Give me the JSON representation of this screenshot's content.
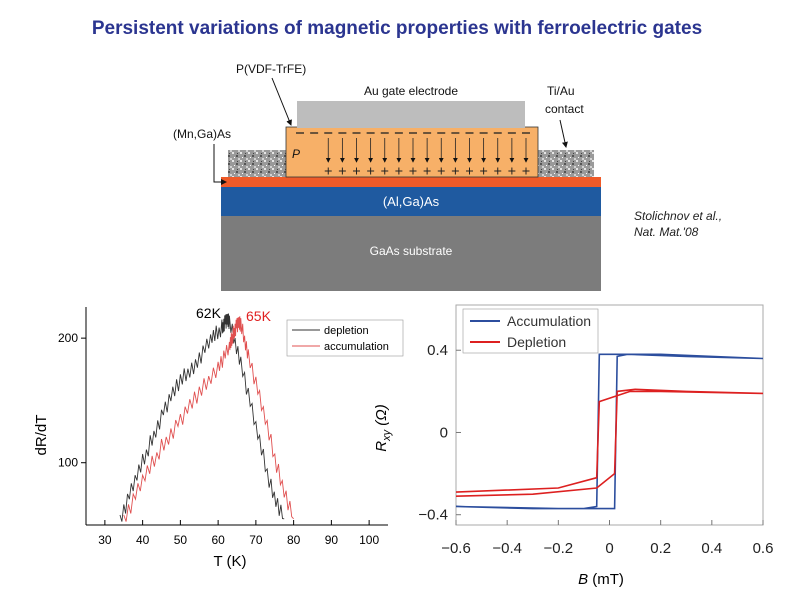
{
  "slide": {
    "title": "Persistent variations of magnetic properties with ferroelectric gates",
    "citation_line1": "Stolichnov et al.,",
    "citation_line2": "Nat. Mat.'08"
  },
  "schematic": {
    "layers": {
      "gate": "Au gate electrode",
      "algaas": "(Al,Ga)As",
      "substrate": "GaAs substrate",
      "polarization": "P"
    },
    "callouts": {
      "pvdf": "P(VDF-TrFE)",
      "mngaas": "(Mn,Ga)As",
      "contact_line1": "Ti/Au",
      "contact_line2": "contact"
    },
    "colors": {
      "gate": "#bdbdbd",
      "ferroelectric": "#f7b068",
      "mngaas": "#ef5a28",
      "algaas": "#1f5aa0",
      "substrate": "#7c7c7c"
    }
  },
  "chart_data": [
    {
      "type": "line",
      "xlabel": "T (K)",
      "ylabel": "dR/dT",
      "xlim": [
        25,
        105
      ],
      "ylim": [
        50,
        225
      ],
      "xticks": [
        30,
        40,
        50,
        60,
        70,
        80,
        90,
        100
      ],
      "yticks": [
        100,
        200
      ],
      "annotations": [
        {
          "text": "62K",
          "color": "#000000"
        },
        {
          "text": "65K",
          "color": "#e02020"
        }
      ],
      "legend_position": "top-right",
      "series": [
        {
          "name": "depletion",
          "color": "#333333",
          "x": [
            34,
            38,
            42,
            46,
            50,
            54,
            58,
            61,
            62,
            63,
            66,
            70,
            74,
            77.5
          ],
          "y": [
            55,
            85,
            115,
            145,
            165,
            180,
            198,
            208,
            215,
            212,
            182,
            128,
            80,
            55
          ]
        },
        {
          "name": "accumulation",
          "color": "#e05050",
          "x": [
            35,
            40,
            45,
            50,
            55,
            60,
            63,
            64,
            65,
            66,
            68,
            72,
            76,
            80
          ],
          "y": [
            55,
            85,
            112,
            135,
            155,
            178,
            192,
            203,
            212,
            210,
            188,
            140,
            92,
            55
          ]
        }
      ]
    },
    {
      "type": "line",
      "xlabel": "B (mT)",
      "ylabel": "R_xy (Ω)",
      "xlim": [
        -0.6,
        0.6
      ],
      "ylim": [
        -0.45,
        0.62
      ],
      "xticks": [
        -0.6,
        -0.4,
        -0.2,
        0,
        0.2,
        0.4,
        0.6
      ],
      "xtick_labels": [
        "−0.6",
        "−0.4",
        "−0.2",
        "0",
        "0.2",
        "0.4",
        "0.6"
      ],
      "yticks": [
        -0.4,
        0,
        0.4
      ],
      "ytick_labels": [
        "−0.4",
        "0",
        "0.4"
      ],
      "legend_position": "top-left",
      "series": [
        {
          "name": "Accumulation",
          "color": "#2c4e9e",
          "x": [
            -0.6,
            -0.3,
            -0.1,
            -0.05,
            -0.04,
            0.2,
            0.6,
            0.6,
            0.3,
            0.07,
            0.03,
            0.02,
            -0.2,
            -0.6
          ],
          "y": [
            -0.36,
            -0.37,
            -0.37,
            -0.36,
            0.38,
            0.38,
            0.36,
            0.36,
            0.37,
            0.38,
            0.37,
            -0.37,
            -0.37,
            -0.36
          ]
        },
        {
          "name": "Depletion",
          "color": "#dd2020",
          "x": [
            -0.6,
            -0.3,
            -0.05,
            0.02,
            0.03,
            0.1,
            0.3,
            0.6,
            0.6,
            0.2,
            0.08,
            -0.04,
            -0.05,
            -0.2,
            -0.6
          ],
          "y": [
            -0.31,
            -0.3,
            -0.27,
            -0.2,
            0.2,
            0.21,
            0.2,
            0.19,
            0.19,
            0.2,
            0.2,
            0.15,
            -0.22,
            -0.27,
            -0.29
          ]
        }
      ]
    }
  ]
}
